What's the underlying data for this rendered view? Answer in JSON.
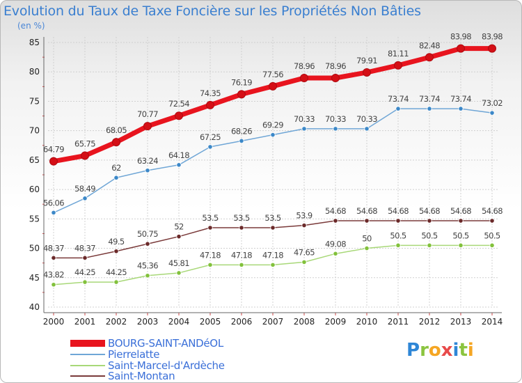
{
  "header": {
    "title": "Evolution du Taux de Taxe Foncière sur les Propriétés Non Bâties",
    "unit": "(en %)"
  },
  "logo": {
    "letters": [
      "P",
      "r",
      "o",
      "x",
      "i",
      "t",
      "i"
    ],
    "colors": [
      "#2e86d6",
      "#8bc43f",
      "#f5a623",
      "#e84a4a",
      "#2e86d6",
      "#8bc43f",
      "#f5a623"
    ]
  },
  "chart_data": {
    "type": "line",
    "title": "Evolution du Taux de Taxe Foncière sur les Propriétés Non Bâties",
    "ylabel": "(en %)",
    "xlabel": "",
    "ylim": [
      40,
      85
    ],
    "yticks": [
      40,
      45,
      50,
      55,
      60,
      65,
      70,
      75,
      80,
      85
    ],
    "grid": true,
    "legend": "bottom-left",
    "x": [
      "2000",
      "2001",
      "2002",
      "2003",
      "2004",
      "2005",
      "2006",
      "2007",
      "2008",
      "2009",
      "2010",
      "2011",
      "2012",
      "2013",
      "2014"
    ],
    "series": [
      {
        "name": "BOURG-SAINT-ANDéOL",
        "color": "#e8141e",
        "marker": "#d40f16",
        "emphasis": true,
        "values": [
          64.79,
          65.75,
          68.05,
          70.77,
          72.54,
          74.35,
          76.19,
          77.56,
          78.96,
          78.96,
          79.91,
          81.11,
          82.48,
          83.98,
          83.98
        ],
        "labels": [
          "64.79",
          "65.75",
          "68.05",
          "70.77",
          "72.54",
          "74.35",
          "76.19",
          "77.56",
          "78.96",
          "78.96",
          "79.91",
          "81.11",
          "82.48",
          "83.98",
          "83.98"
        ]
      },
      {
        "name": "Pierrelatte",
        "color": "#6fa6d6",
        "marker": "#3c88c8",
        "values": [
          56.06,
          58.49,
          62,
          63.24,
          64.18,
          67.25,
          68.26,
          69.29,
          70.33,
          70.33,
          70.33,
          73.74,
          73.74,
          73.74,
          73.02
        ],
        "labels": [
          "56.06",
          "58.49",
          "62",
          "63.24",
          "64.18",
          "67.25",
          "68.26",
          "69.29",
          "70.33",
          "70.33",
          "70.33",
          "73.74",
          "73.74",
          "73.74",
          "73.02"
        ]
      },
      {
        "name": "Saint-Marcel-d'Ardèche",
        "color": "#a8d878",
        "marker": "#82c13c",
        "values": [
          43.82,
          44.25,
          44.25,
          45.36,
          45.81,
          47.18,
          47.18,
          47.18,
          47.65,
          49.08,
          50,
          50.5,
          50.5,
          50.5,
          50.5
        ],
        "labels": [
          "43.82",
          "44.25",
          "44.25",
          "45.36",
          "45.81",
          "47.18",
          "47.18",
          "47.18",
          "47.65",
          "49.08",
          "50",
          "50.5",
          "50.5",
          "50.5",
          "50.5"
        ]
      },
      {
        "name": "Saint-Montan",
        "color": "#7a3a3a",
        "marker": "#6b2a2a",
        "values": [
          48.37,
          48.37,
          49.5,
          50.75,
          52,
          53.5,
          53.5,
          53.5,
          53.9,
          54.68,
          54.68,
          54.68,
          54.68,
          54.68,
          54.68
        ],
        "labels": [
          "48.37",
          "48.37",
          "49.5",
          "50.75",
          "52",
          "53.5",
          "53.5",
          "53.5",
          "53.9",
          "54.68",
          "54.68",
          "54.68",
          "54.68",
          "54.68",
          "54.68"
        ]
      }
    ]
  }
}
